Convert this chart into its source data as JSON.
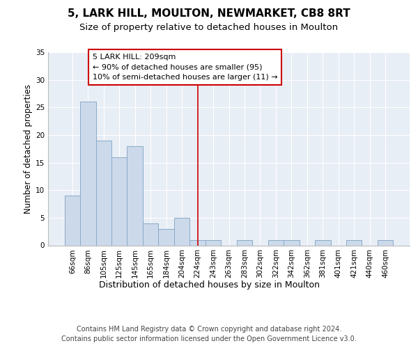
{
  "title1": "5, LARK HILL, MOULTON, NEWMARKET, CB8 8RT",
  "title2": "Size of property relative to detached houses in Moulton",
  "xlabel": "Distribution of detached houses by size in Moulton",
  "ylabel": "Number of detached properties",
  "categories": [
    "66sqm",
    "86sqm",
    "105sqm",
    "125sqm",
    "145sqm",
    "165sqm",
    "184sqm",
    "204sqm",
    "224sqm",
    "243sqm",
    "263sqm",
    "283sqm",
    "302sqm",
    "322sqm",
    "342sqm",
    "362sqm",
    "381sqm",
    "401sqm",
    "421sqm",
    "440sqm",
    "460sqm"
  ],
  "values": [
    9,
    26,
    19,
    16,
    18,
    4,
    3,
    5,
    1,
    1,
    0,
    1,
    0,
    1,
    1,
    0,
    1,
    0,
    1,
    0,
    1
  ],
  "bar_color": "#ccd9ea",
  "bar_edge_color": "#88aac8",
  "vline_x_index": 8,
  "vline_color": "#cc0000",
  "annotation_text": "5 LARK HILL: 209sqm\n← 90% of detached houses are smaller (95)\n10% of semi-detached houses are larger (11) →",
  "annotation_box_color": "#ffffff",
  "annotation_box_edge": "#cc0000",
  "ylim": [
    0,
    35
  ],
  "yticks": [
    0,
    5,
    10,
    15,
    20,
    25,
    30,
    35
  ],
  "footer1": "Contains HM Land Registry data © Crown copyright and database right 2024.",
  "footer2": "Contains public sector information licensed under the Open Government Licence v3.0.",
  "bg_color": "#ffffff",
  "plot_bg_color": "#e8eef5",
  "grid_color": "#ffffff",
  "title1_fontsize": 11,
  "title2_fontsize": 9.5,
  "xlabel_fontsize": 9,
  "ylabel_fontsize": 8.5,
  "tick_fontsize": 7.5,
  "annotation_fontsize": 8,
  "footer_fontsize": 7
}
